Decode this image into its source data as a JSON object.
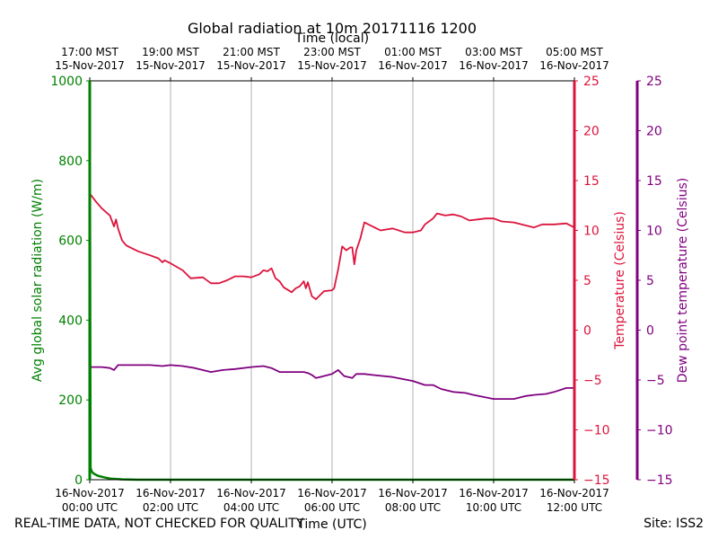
{
  "chart_data": {
    "type": "line",
    "title": "Global radiation at 10m 20171116 1200",
    "top_axis_label": "Time (local)",
    "xlabel": "Time (UTC)",
    "x_unit": "hours since 16-Nov-2017 00:00 UTC",
    "xlim": [
      0,
      12
    ],
    "bottom_ticks": [
      {
        "x": 0,
        "line1": "16-Nov-2017",
        "line2": "00:00 UTC"
      },
      {
        "x": 2,
        "line1": "16-Nov-2017",
        "line2": "02:00 UTC"
      },
      {
        "x": 4,
        "line1": "16-Nov-2017",
        "line2": "04:00 UTC"
      },
      {
        "x": 6,
        "line1": "16-Nov-2017",
        "line2": "06:00 UTC"
      },
      {
        "x": 8,
        "line1": "16-Nov-2017",
        "line2": "08:00 UTC"
      },
      {
        "x": 10,
        "line1": "16-Nov-2017",
        "line2": "10:00 UTC"
      },
      {
        "x": 12,
        "line1": "16-Nov-2017",
        "line2": "12:00 UTC"
      }
    ],
    "top_ticks": [
      {
        "x": 0,
        "line1": "17:00 MST",
        "line2": "15-Nov-2017"
      },
      {
        "x": 2,
        "line1": "19:00 MST",
        "line2": "15-Nov-2017"
      },
      {
        "x": 4,
        "line1": "21:00 MST",
        "line2": "15-Nov-2017"
      },
      {
        "x": 6,
        "line1": "23:00 MST",
        "line2": "15-Nov-2017"
      },
      {
        "x": 8,
        "line1": "01:00 MST",
        "line2": "16-Nov-2017"
      },
      {
        "x": 10,
        "line1": "03:00 MST",
        "line2": "16-Nov-2017"
      },
      {
        "x": 12,
        "line1": "05:00 MST",
        "line2": "16-Nov-2017"
      }
    ],
    "grid_x": [
      2,
      4,
      6,
      8,
      10
    ],
    "axes": {
      "radiation": {
        "label": "Avg global solar radiation (W/m)",
        "ylim": [
          0,
          1000
        ],
        "ticks": [
          0,
          200,
          400,
          600,
          800,
          1000
        ],
        "color": "#008000"
      },
      "temperature": {
        "label": "Temperature (Celsius)",
        "ylim": [
          -15,
          25
        ],
        "ticks": [
          -15,
          -10,
          -5,
          0,
          5,
          10,
          15,
          20,
          25
        ],
        "color": "#dc143c"
      },
      "dewpoint": {
        "label": "Dew point temperature (Celsius)",
        "ylim": [
          -15,
          25
        ],
        "ticks": [
          -15,
          -10,
          -5,
          0,
          5,
          10,
          15,
          20,
          25
        ],
        "color": "#800080"
      }
    },
    "series": [
      {
        "name": "Avg global solar radiation",
        "axis": "radiation",
        "color": "#008000",
        "x": [
          0,
          0.02,
          0.05,
          0.1,
          0.2,
          0.35,
          0.5,
          0.8,
          1.2,
          2,
          4,
          6,
          8,
          10,
          12
        ],
        "y": [
          1000,
          30,
          20,
          15,
          10,
          6,
          3,
          1,
          0,
          0,
          0,
          0,
          0,
          0,
          0
        ]
      },
      {
        "name": "Temperature",
        "axis": "temperature",
        "color": "#dc143c",
        "x": [
          0,
          0.15,
          0.3,
          0.5,
          0.6,
          0.65,
          0.7,
          0.8,
          0.9,
          1.0,
          1.2,
          1.5,
          1.7,
          1.8,
          1.85,
          2.0,
          2.3,
          2.5,
          2.8,
          3.0,
          3.2,
          3.4,
          3.6,
          3.8,
          4.0,
          4.2,
          4.3,
          4.4,
          4.5,
          4.6,
          4.7,
          4.8,
          5.0,
          5.1,
          5.2,
          5.3,
          5.35,
          5.4,
          5.5,
          5.6,
          5.7,
          5.8,
          6.0,
          6.05,
          6.15,
          6.25,
          6.35,
          6.45,
          6.5,
          6.55,
          6.6,
          6.7,
          6.8,
          7.0,
          7.2,
          7.5,
          7.8,
          8.0,
          8.2,
          8.3,
          8.5,
          8.6,
          8.8,
          9.0,
          9.2,
          9.4,
          9.6,
          9.8,
          10.0,
          10.2,
          10.5,
          11.0,
          11.2,
          11.5,
          11.8,
          12.0
        ],
        "y": [
          13.7,
          12.9,
          12.2,
          11.5,
          10.4,
          11.1,
          10.2,
          9.0,
          8.5,
          8.3,
          7.9,
          7.5,
          7.2,
          6.8,
          7.0,
          6.7,
          6.0,
          5.2,
          5.3,
          4.7,
          4.7,
          5.0,
          5.4,
          5.4,
          5.3,
          5.6,
          6.0,
          5.9,
          6.2,
          5.2,
          4.9,
          4.3,
          3.8,
          4.2,
          4.4,
          4.9,
          4.2,
          4.8,
          3.4,
          3.1,
          3.5,
          3.9,
          4.0,
          4.2,
          6.1,
          8.4,
          8.0,
          8.3,
          8.3,
          6.6,
          8.0,
          9.2,
          10.8,
          10.4,
          10.0,
          10.2,
          9.8,
          9.8,
          10.0,
          10.6,
          11.2,
          11.7,
          11.5,
          11.6,
          11.4,
          11.0,
          11.1,
          11.2,
          11.2,
          10.9,
          10.8,
          10.3,
          10.6,
          10.6,
          10.7,
          10.3
        ]
      },
      {
        "name": "Dew point temperature",
        "axis": "dewpoint",
        "color": "#800080",
        "x": [
          0,
          0.3,
          0.5,
          0.6,
          0.7,
          0.8,
          1.0,
          1.5,
          1.8,
          2.0,
          2.3,
          2.6,
          3.0,
          3.3,
          3.6,
          4.0,
          4.3,
          4.5,
          4.7,
          5.0,
          5.3,
          5.4,
          5.5,
          5.6,
          5.7,
          6.0,
          6.15,
          6.3,
          6.5,
          6.6,
          6.8,
          7.0,
          7.5,
          8.0,
          8.3,
          8.5,
          8.7,
          9.0,
          9.3,
          9.5,
          10.0,
          10.3,
          10.5,
          10.8,
          11.0,
          11.3,
          11.5,
          11.8,
          12.0
        ],
        "y": [
          -3.7,
          -3.7,
          -3.8,
          -4.0,
          -3.5,
          -3.5,
          -3.5,
          -3.5,
          -3.6,
          -3.5,
          -3.6,
          -3.8,
          -4.2,
          -4.0,
          -3.9,
          -3.7,
          -3.6,
          -3.8,
          -4.2,
          -4.2,
          -4.2,
          -4.3,
          -4.5,
          -4.8,
          -4.7,
          -4.4,
          -4.0,
          -4.6,
          -4.8,
          -4.4,
          -4.4,
          -4.5,
          -4.7,
          -5.1,
          -5.5,
          -5.5,
          -5.9,
          -6.2,
          -6.3,
          -6.5,
          -6.9,
          -6.9,
          -6.9,
          -6.6,
          -6.5,
          -6.4,
          -6.2,
          -5.8,
          -5.8
        ]
      }
    ]
  },
  "footer": {
    "left": "REAL-TIME DATA, NOT CHECKED FOR QUALITY",
    "right": "Site: ISS2"
  }
}
